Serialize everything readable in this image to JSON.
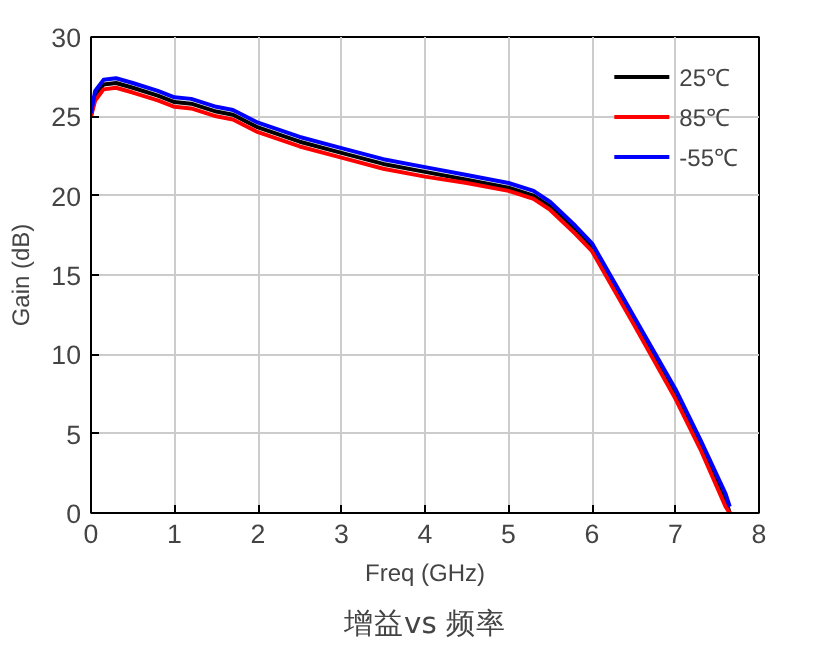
{
  "chart_data": {
    "type": "line",
    "title": "增益vs 频率",
    "xlabel": "Freq (GHz)",
    "ylabel": "Gain (dB)",
    "xlim": [
      0,
      8
    ],
    "ylim": [
      0,
      30
    ],
    "xticks": [
      0,
      1,
      2,
      3,
      4,
      5,
      6,
      7,
      8
    ],
    "yticks": [
      0,
      5,
      10,
      15,
      20,
      25,
      30
    ],
    "grid": true,
    "legend": "top right",
    "line_style": "solid",
    "x": [
      0,
      0.05,
      0.15,
      0.3,
      0.5,
      0.8,
      1.0,
      1.2,
      1.5,
      1.7,
      2.0,
      2.5,
      3.0,
      3.5,
      4.0,
      4.5,
      5.0,
      5.3,
      5.5,
      5.8,
      6.0,
      6.5,
      7.0,
      7.3,
      7.6,
      7.65
    ],
    "series": [
      {
        "name": "25℃",
        "color": "#000000",
        "values": [
          25.0,
          26.3,
          27.0,
          27.1,
          26.8,
          26.3,
          25.9,
          25.8,
          25.3,
          25.1,
          24.3,
          23.4,
          22.7,
          22.0,
          21.5,
          21.0,
          20.5,
          20.0,
          19.3,
          17.8,
          16.8,
          12.2,
          7.5,
          4.3,
          0.8,
          0.0
        ]
      },
      {
        "name": "85℃",
        "color": "#ff0000",
        "values": [
          25.0,
          26.0,
          26.7,
          26.8,
          26.5,
          26.0,
          25.6,
          25.5,
          25.0,
          24.8,
          24.0,
          23.1,
          22.4,
          21.7,
          21.2,
          20.8,
          20.3,
          19.8,
          19.1,
          17.6,
          16.5,
          11.9,
          7.2,
          4.0,
          0.4,
          0.0
        ]
      },
      {
        "name": "-55℃",
        "color": "#0000ff",
        "values": [
          25.2,
          26.6,
          27.3,
          27.4,
          27.1,
          26.6,
          26.2,
          26.1,
          25.6,
          25.4,
          24.6,
          23.7,
          23.0,
          22.3,
          21.8,
          21.3,
          20.8,
          20.3,
          19.6,
          18.1,
          17.0,
          12.4,
          7.8,
          4.6,
          1.2,
          0.4
        ]
      }
    ]
  }
}
